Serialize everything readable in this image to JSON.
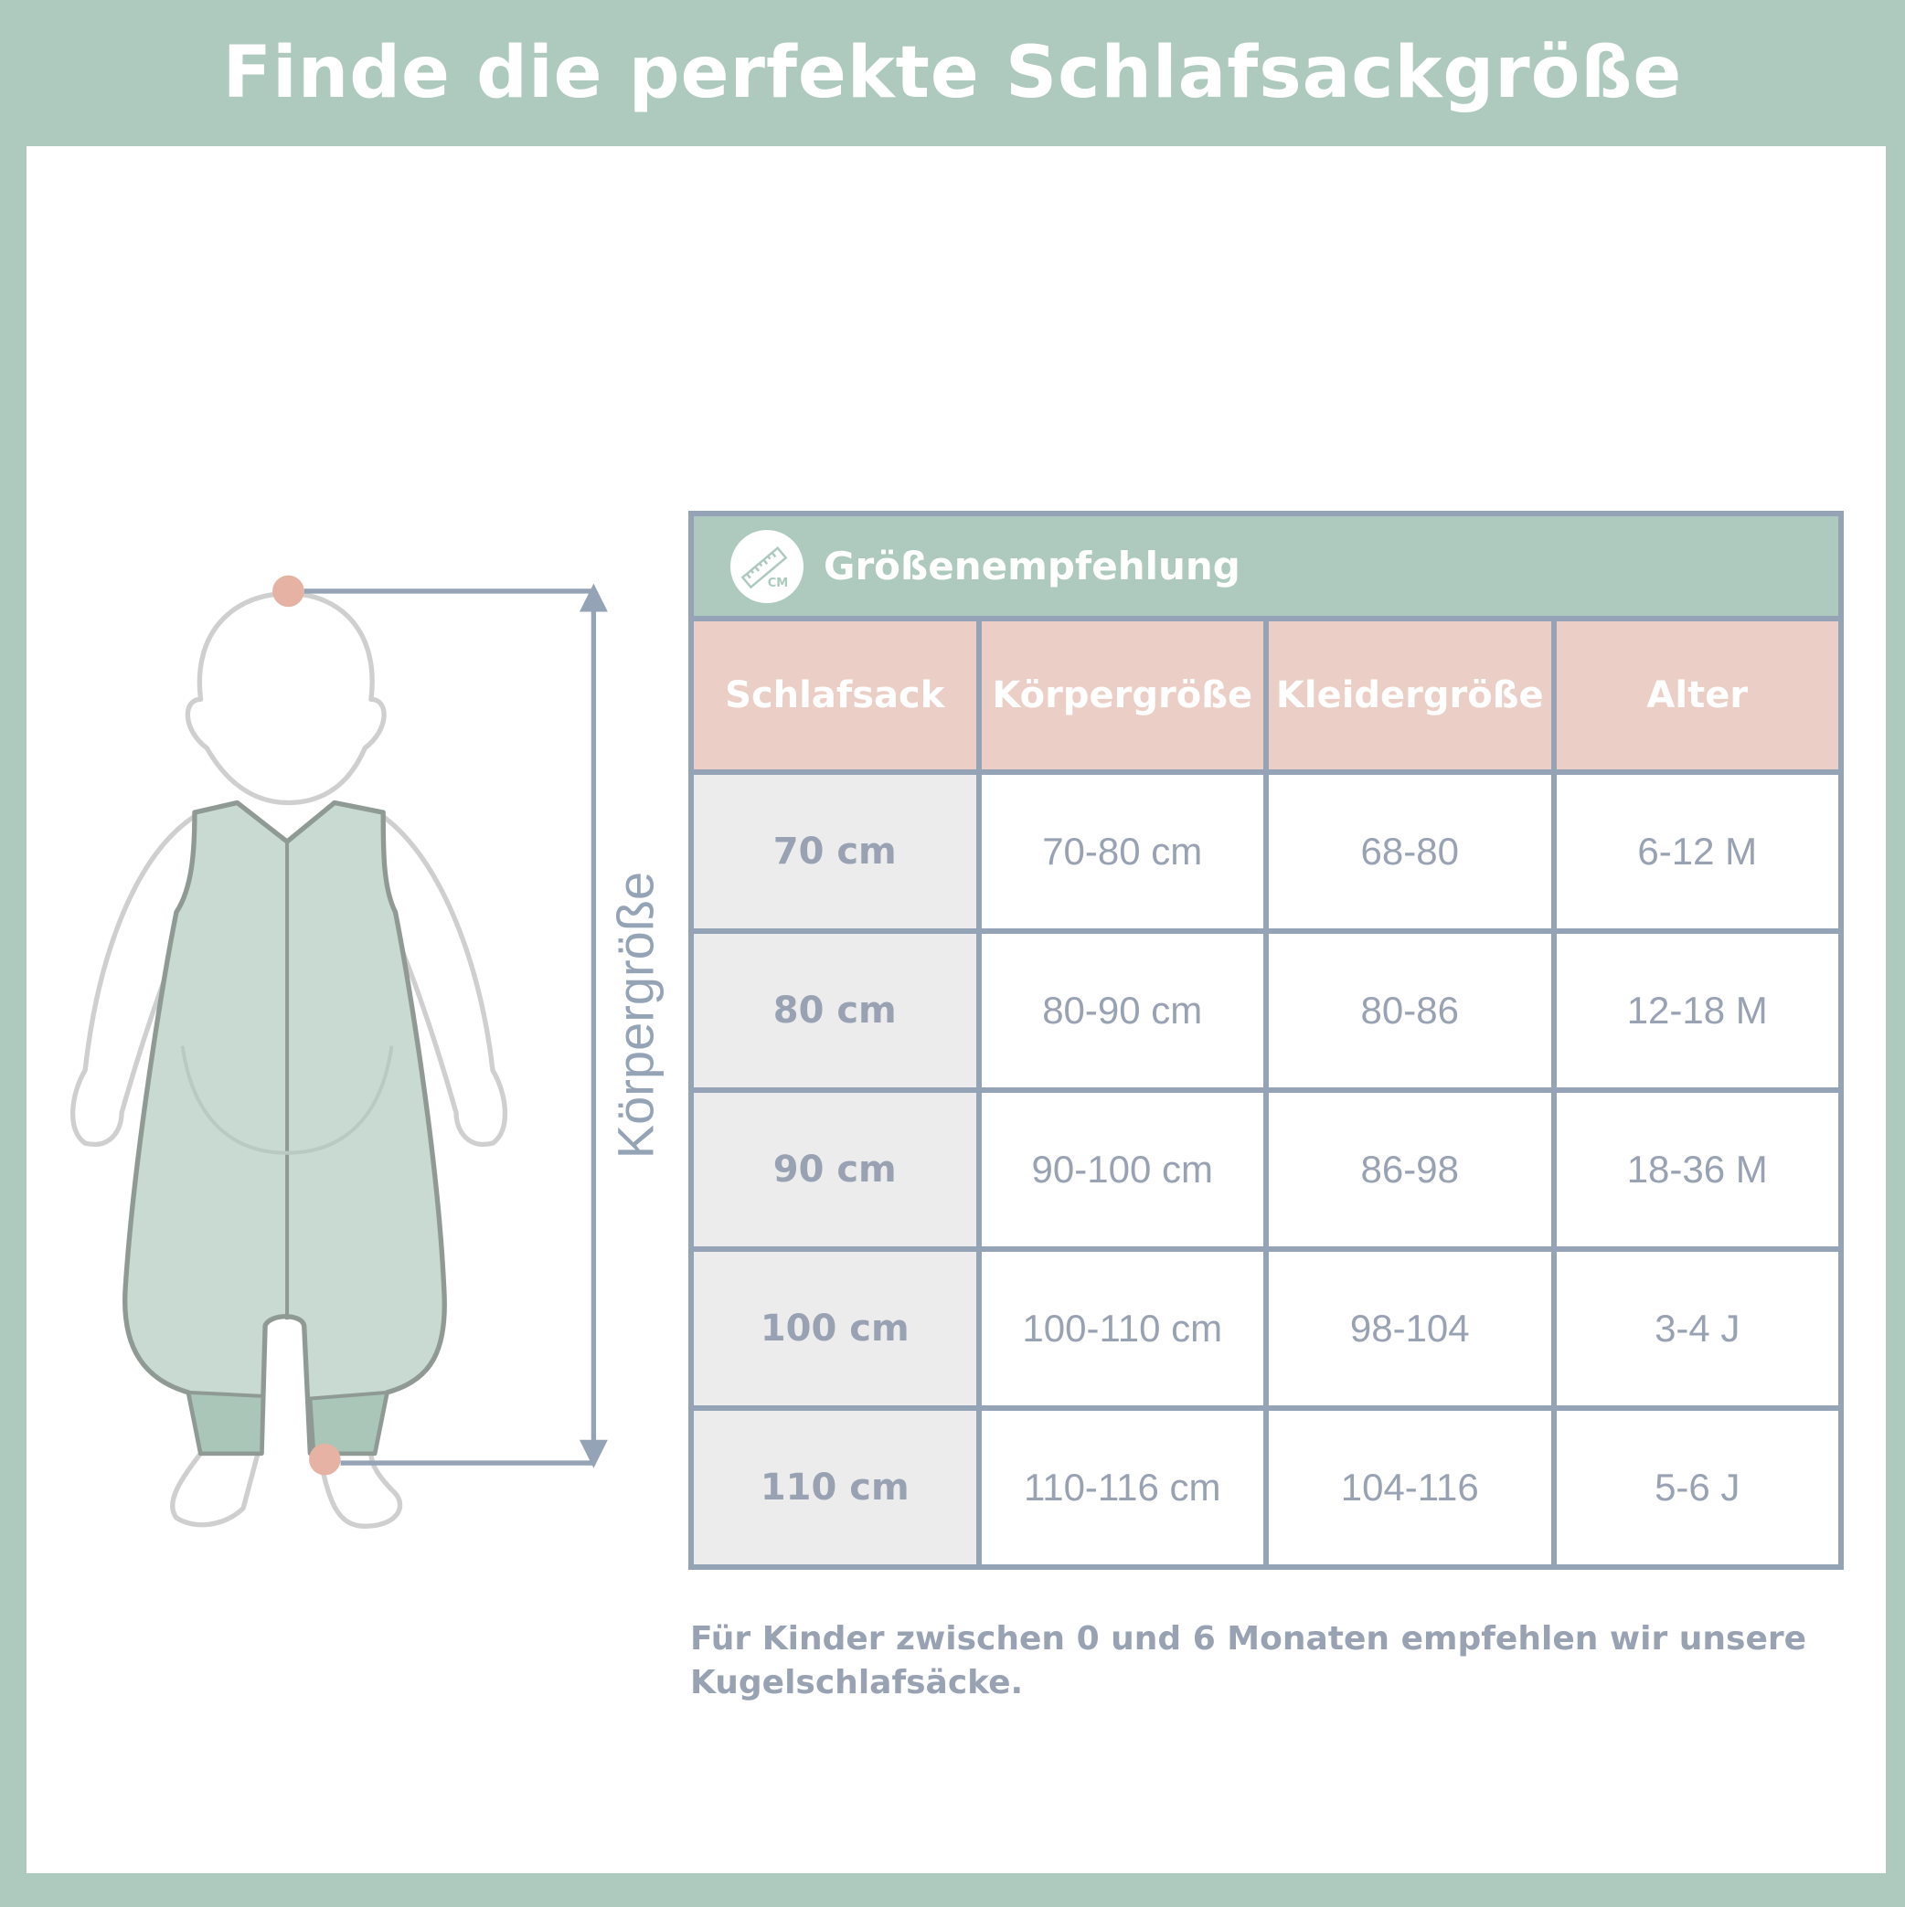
{
  "title": "Finde die perfekte Schlafsackgröße",
  "measure_label": "Körpergröße",
  "table": {
    "header_title": "Größenempfehlung",
    "header_icon": "ruler-cm-icon",
    "header_icon_text": "CM",
    "columns": [
      "Schlafsack",
      "Körpergröße",
      "Kleidergröße",
      "Alter"
    ],
    "rows": [
      [
        "70 cm",
        "70-80 cm",
        "68-80",
        "6-12 M"
      ],
      [
        "80 cm",
        "80-90 cm",
        "80-86",
        "12-18 M"
      ],
      [
        "90 cm",
        "90-100 cm",
        "86-98",
        "18-36 M"
      ],
      [
        "100 cm",
        "100-110 cm",
        "98-104",
        "3-4 J"
      ],
      [
        "110 cm",
        "110-116 cm",
        "104-116",
        "5-6 J"
      ]
    ]
  },
  "note": "Für Kinder zwischen 0 und 6 Monaten empfehlen wir unsere Kugelschlafsäcke.",
  "colors": {
    "frame_green": "#aecabe",
    "header_pink": "#ebcfc6",
    "border_slate": "#94a3b5",
    "text_gray": "#98a2b3",
    "marker": "#e5b2a3"
  }
}
